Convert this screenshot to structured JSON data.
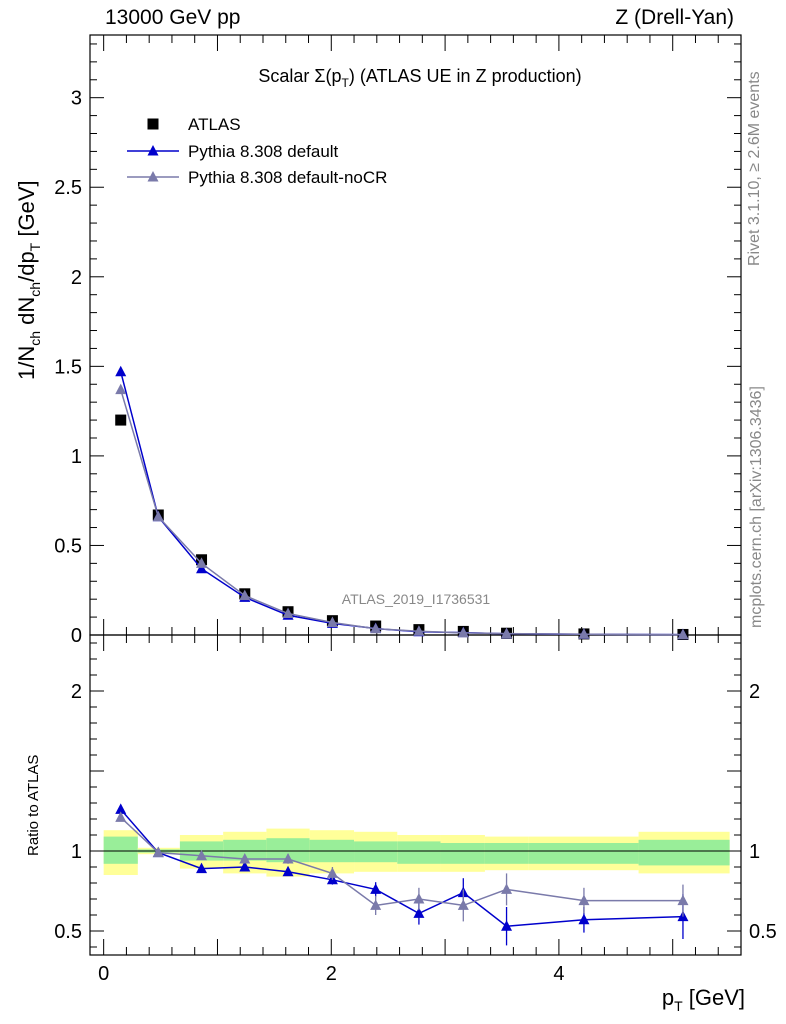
{
  "header": {
    "left": "13000 GeV pp",
    "right": "Z (Drell-Yan)"
  },
  "side_labels": {
    "rivet": "Rivet 3.1.10, ≥ 2.6M events",
    "mcplots": "mcplots.cern.ch [arXiv:1306.3436]"
  },
  "chart_data": [
    {
      "type": "scatter",
      "panel": "main",
      "title": {
        "prefix": "Scalar Σ(p",
        "sub": "T",
        "suffix": ") (ATLAS UE in Z production)"
      },
      "ylabel": "1/N_ch dN_ch/dp_T [GeV]",
      "ylim": [
        0,
        3.35
      ],
      "yticks": [
        "0",
        "0.5",
        "1",
        "1.5",
        "2",
        "2.5",
        "3"
      ],
      "analysis_tag": "ATLAS_2019_I1736531",
      "x": [
        0.15,
        0.48,
        0.86,
        1.24,
        1.62,
        2.01,
        2.39,
        2.77,
        3.16,
        3.54,
        4.22,
        5.09
      ],
      "series": [
        {
          "name": "ATLAS",
          "marker": "square",
          "color": "#000000",
          "values": [
            1.2,
            0.67,
            0.42,
            0.23,
            0.13,
            0.08,
            0.05,
            0.03,
            0.02,
            0.01,
            0.006,
            0.003
          ]
        },
        {
          "name": "Pythia 8.308 default",
          "marker": "triangle",
          "color": "#0000cc",
          "values": [
            1.47,
            0.66,
            0.37,
            0.21,
            0.11,
            0.065,
            0.036,
            0.018,
            0.013,
            0.007,
            0.004,
            0.002
          ]
        },
        {
          "name": "Pythia 8.308 default-noCR",
          "marker": "triangle",
          "color": "#7a7aaa",
          "values": [
            1.37,
            0.66,
            0.4,
            0.22,
            0.12,
            0.07,
            0.035,
            0.021,
            0.012,
            0.008,
            0.004,
            0.002
          ]
        }
      ],
      "legend": "top-left"
    },
    {
      "type": "scatter",
      "panel": "ratio",
      "ylabel": "Ratio to ATLAS",
      "xlabel": "p_T [GeV]",
      "xlim": [
        -0.12,
        5.6
      ],
      "ylim": [
        0.35,
        2.35
      ],
      "xticks": [
        "0",
        "2",
        "4"
      ],
      "yticks": [
        "0.5",
        "1",
        "2"
      ],
      "reference_line": 1,
      "bands": {
        "x_edges": [
          0,
          0.3,
          0.67,
          1.05,
          1.43,
          1.81,
          2.2,
          2.58,
          2.96,
          3.35,
          3.73,
          4.7,
          5.5
        ],
        "inner_lo": [
          0.92,
          0.99,
          0.94,
          0.94,
          0.93,
          0.93,
          0.93,
          0.92,
          0.92,
          0.92,
          0.92,
          0.91
        ],
        "inner_hi": [
          1.09,
          1.01,
          1.06,
          1.07,
          1.08,
          1.07,
          1.06,
          1.06,
          1.05,
          1.05,
          1.05,
          1.07
        ],
        "outer_lo": [
          0.85,
          0.98,
          0.89,
          0.86,
          0.84,
          0.86,
          0.87,
          0.87,
          0.87,
          0.88,
          0.88,
          0.86
        ],
        "outer_hi": [
          1.13,
          1.02,
          1.1,
          1.12,
          1.14,
          1.13,
          1.12,
          1.1,
          1.1,
          1.09,
          1.09,
          1.12
        ]
      },
      "series": [
        {
          "name": "Pythia 8.308 default",
          "color": "#0000cc",
          "values": [
            1.26,
            0.99,
            0.89,
            0.9,
            0.87,
            0.82,
            0.76,
            0.61,
            0.74,
            0.53,
            0.57,
            0.59
          ],
          "errors": [
            0.01,
            0.01,
            0.01,
            0.015,
            0.025,
            0.03,
            0.045,
            0.07,
            0.09,
            0.12,
            0.08,
            0.14
          ]
        },
        {
          "name": "Pythia 8.308 default-noCR",
          "color": "#7a7aaa",
          "values": [
            1.21,
            0.99,
            0.97,
            0.95,
            0.95,
            0.86,
            0.66,
            0.7,
            0.66,
            0.76,
            0.69,
            0.69
          ],
          "errors": [
            0.01,
            0.01,
            0.01,
            0.02,
            0.03,
            0.04,
            0.06,
            0.07,
            0.1,
            0.1,
            0.08,
            0.1
          ]
        }
      ]
    }
  ]
}
